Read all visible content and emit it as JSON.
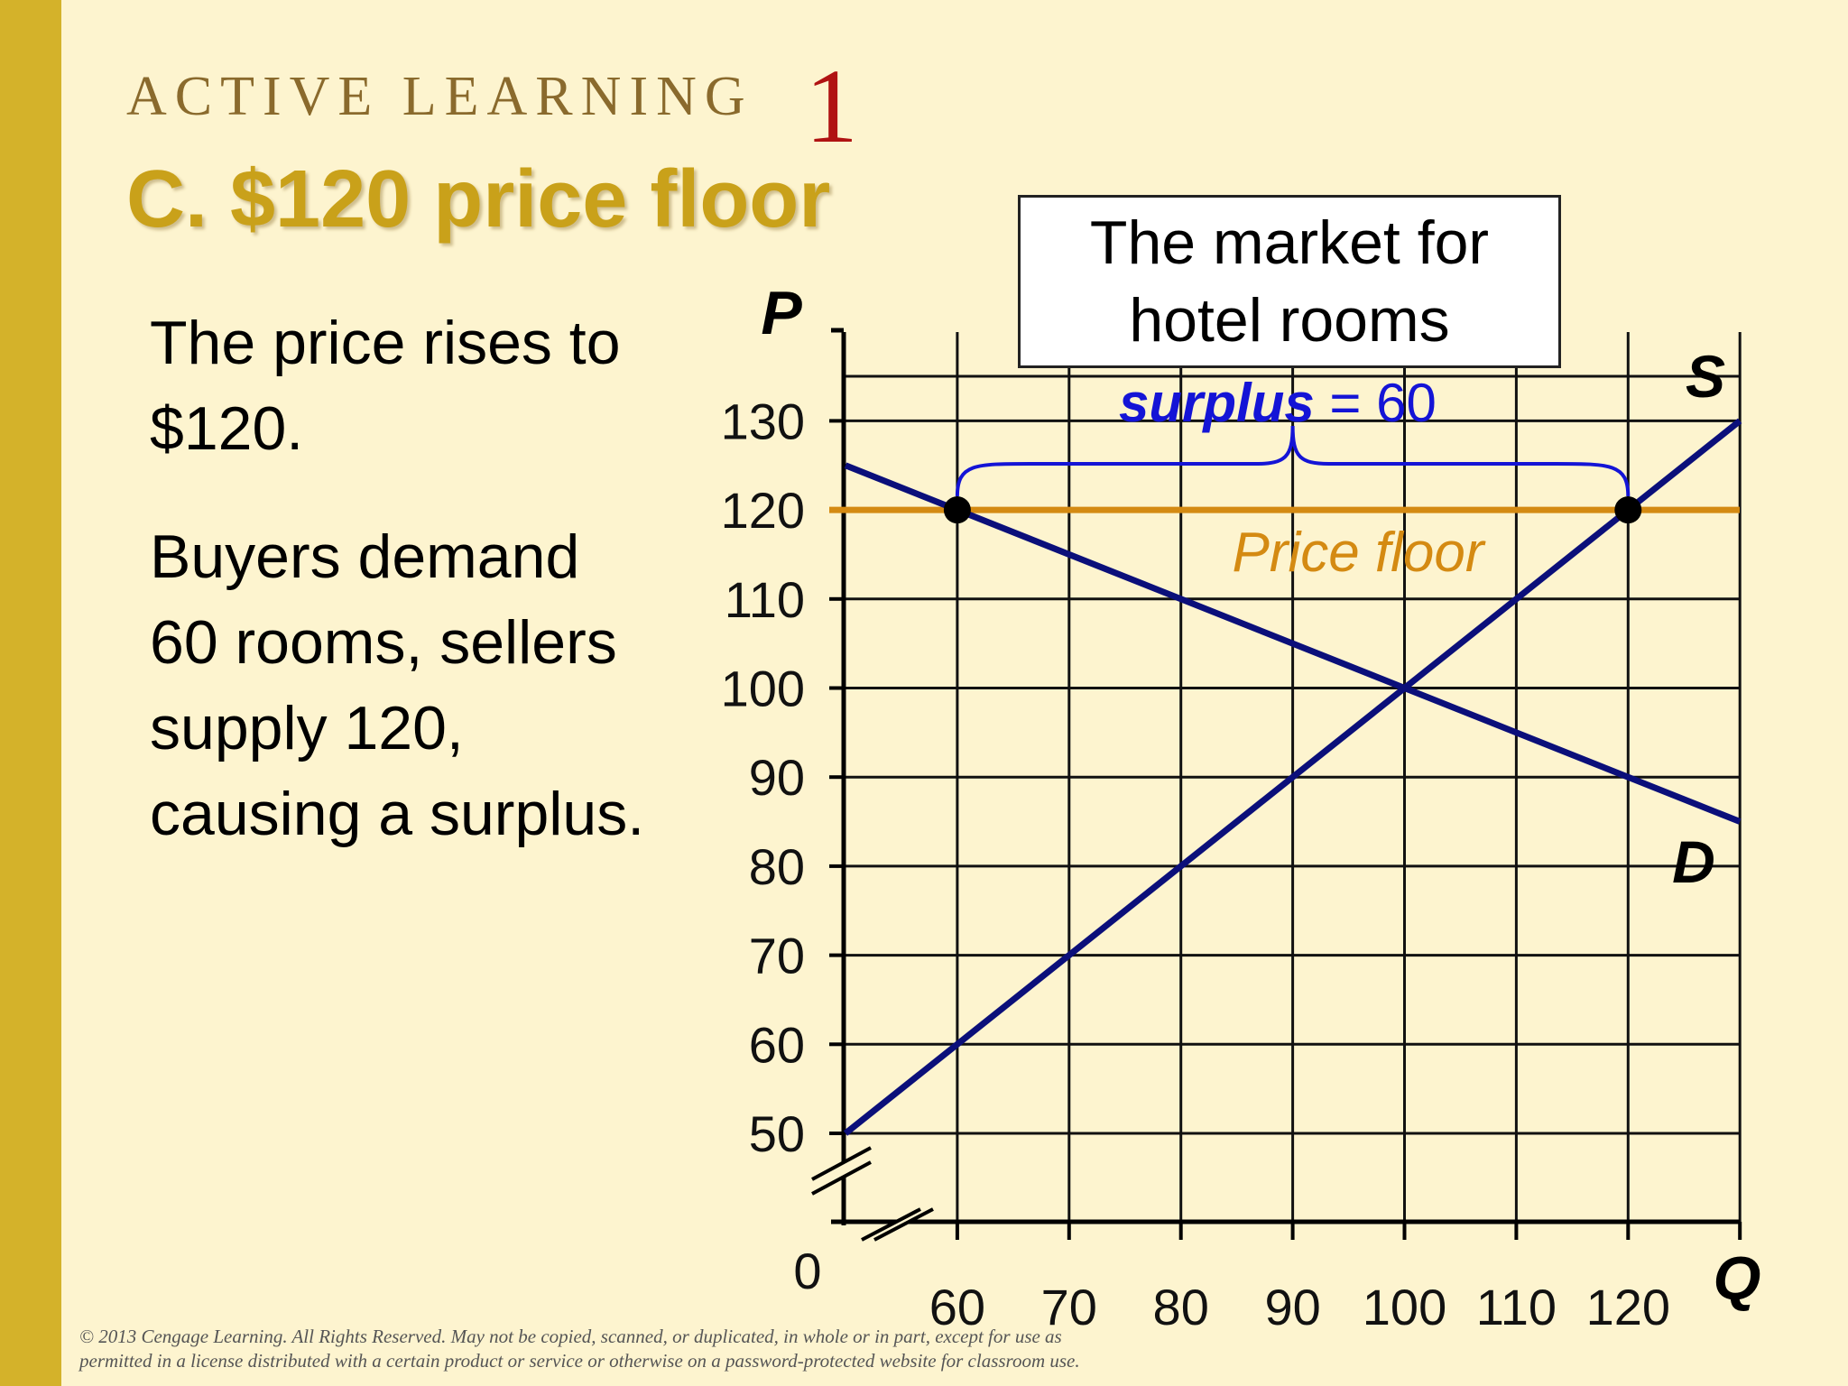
{
  "slide": {
    "kicker": "ACTIVE LEARNING",
    "kicker_number": "1",
    "title": "C.  $120 price floor",
    "paragraph_1": "The price rises to $120.",
    "paragraph_2": "Buyers demand 60 rooms, sellers supply 120, causing a surplus.",
    "copyright_line_1": "© 2013 Cengage Learning. All Rights Reserved. May not be copied, scanned, or duplicated, in whole or in part, except for use as",
    "copyright_line_2": "permitted in a license distributed with a certain product or service or otherwise on a password-protected website for classroom use."
  },
  "colors": {
    "background": "#fdf4cf",
    "accent_bar": "#d4b22a",
    "title": "#c9a11a",
    "curves": "#0b0f7a",
    "price_floor": "#d48a12",
    "surplus": "#1414d6"
  },
  "chart_data": {
    "type": "line",
    "box_title_line_1": "The market for",
    "box_title_line_2": "hotel rooms",
    "ylabel": "P",
    "xlabel": "Q",
    "origin_label": "0",
    "x_ticks": [
      60,
      70,
      80,
      90,
      100,
      110,
      120
    ],
    "y_ticks": [
      50,
      60,
      70,
      80,
      90,
      100,
      110,
      120,
      130
    ],
    "xlim": [
      50,
      130
    ],
    "ylim": [
      50,
      135
    ],
    "grid": true,
    "axis_breaks": true,
    "series": [
      {
        "name": "S",
        "points": [
          [
            50,
            50
          ],
          [
            130,
            130
          ]
        ]
      },
      {
        "name": "D",
        "points": [
          [
            50,
            125
          ],
          [
            130,
            85
          ]
        ]
      }
    ],
    "price_floor": {
      "price": 120,
      "label": "Price floor"
    },
    "points": [
      [
        60,
        120
      ],
      [
        120,
        120
      ]
    ],
    "surplus": {
      "label": "surplus",
      "equals": "= 60",
      "from_q": 60,
      "to_q": 120
    }
  }
}
